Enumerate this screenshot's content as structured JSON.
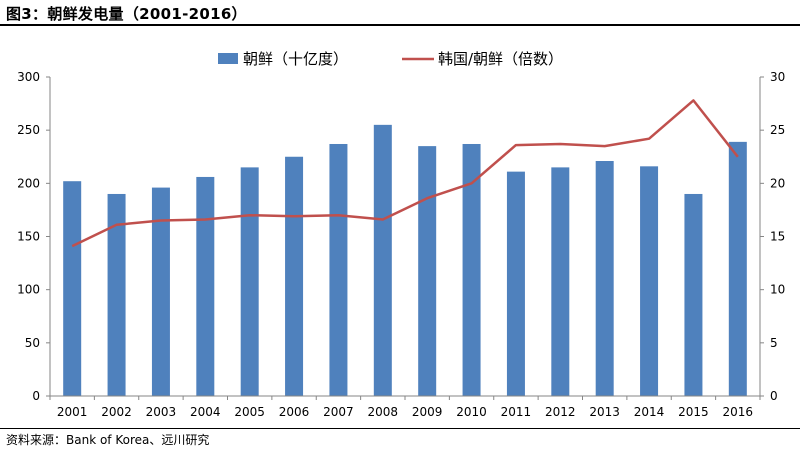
{
  "header": {
    "title": "图3：朝鲜发电量（2001-2016）"
  },
  "footer": {
    "source": "资料来源：Bank of Korea、远川研究"
  },
  "colors": {
    "bar": "#4f81bd",
    "line": "#c0504d",
    "axis": "#868686"
  },
  "chart_data": {
    "type": "bar",
    "title": "",
    "categories": [
      "2001",
      "2002",
      "2003",
      "2004",
      "2005",
      "2006",
      "2007",
      "2008",
      "2009",
      "2010",
      "2011",
      "2012",
      "2013",
      "2014",
      "2015",
      "2016"
    ],
    "series": [
      {
        "name": "朝鲜（十亿度）",
        "type": "bar",
        "axis": "left",
        "values": [
          202,
          190,
          196,
          206,
          215,
          225,
          237,
          255,
          235,
          237,
          211,
          215,
          221,
          216,
          190,
          239
        ]
      },
      {
        "name": "韩国/朝鲜（倍数）",
        "type": "line",
        "axis": "right",
        "values": [
          14.1,
          16.1,
          16.5,
          16.6,
          17.0,
          16.9,
          17.0,
          16.6,
          18.6,
          20.0,
          23.6,
          23.7,
          23.5,
          24.2,
          27.8,
          22.5
        ]
      }
    ],
    "y_left": {
      "ylim": [
        0,
        300
      ],
      "ticks": [
        "0",
        "50",
        "100",
        "150",
        "200",
        "250",
        "300"
      ]
    },
    "y_right": {
      "ylim": [
        0,
        30
      ],
      "ticks": [
        "0",
        "5",
        "10",
        "15",
        "20",
        "25",
        "30"
      ]
    },
    "grid": false,
    "legend": "top-center"
  }
}
